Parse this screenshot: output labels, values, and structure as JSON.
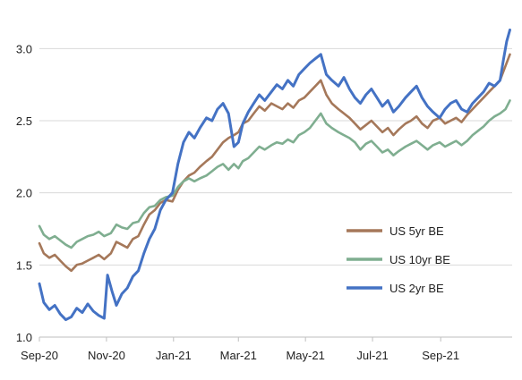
{
  "chart_data": {
    "type": "line",
    "title": "",
    "xlabel": "",
    "ylabel": "",
    "xlim": [
      "2020-09-01",
      "2021-11-05"
    ],
    "ylim": [
      1.0,
      3.25
    ],
    "y_ticks": [
      1.0,
      1.5,
      2.0,
      2.5,
      3.0
    ],
    "y_tick_labels": [
      "1.0",
      "1.5",
      "2.0",
      "2.5",
      "3.0"
    ],
    "x_ticks": [
      "2020-09-01",
      "2020-11-01",
      "2021-01-01",
      "2021-03-01",
      "2021-05-01",
      "2021-07-01",
      "2021-09-01"
    ],
    "x_tick_labels": [
      "Sep-20",
      "Nov-20",
      "Jan-21",
      "Mar-21",
      "May-21",
      "Jul-21",
      "Sep-21"
    ],
    "grid": "horizontal",
    "legend_position": "center-right",
    "series": [
      {
        "name": "US 5yr BE",
        "color": "#A5785A",
        "points": [
          [
            "2020-09-01",
            1.65
          ],
          [
            "2020-09-05",
            1.58
          ],
          [
            "2020-09-10",
            1.55
          ],
          [
            "2020-09-15",
            1.57
          ],
          [
            "2020-09-20",
            1.53
          ],
          [
            "2020-09-25",
            1.49
          ],
          [
            "2020-09-30",
            1.46
          ],
          [
            "2020-10-05",
            1.5
          ],
          [
            "2020-10-10",
            1.51
          ],
          [
            "2020-10-15",
            1.53
          ],
          [
            "2020-10-20",
            1.55
          ],
          [
            "2020-10-25",
            1.57
          ],
          [
            "2020-10-30",
            1.54
          ],
          [
            "2020-11-05",
            1.58
          ],
          [
            "2020-11-10",
            1.66
          ],
          [
            "2020-11-15",
            1.64
          ],
          [
            "2020-11-20",
            1.62
          ],
          [
            "2020-11-25",
            1.68
          ],
          [
            "2020-11-30",
            1.7
          ],
          [
            "2020-12-05",
            1.78
          ],
          [
            "2020-12-10",
            1.85
          ],
          [
            "2020-12-15",
            1.88
          ],
          [
            "2020-12-20",
            1.93
          ],
          [
            "2020-12-25",
            1.95
          ],
          [
            "2020-12-31",
            1.94
          ],
          [
            "2021-01-05",
            2.02
          ],
          [
            "2021-01-10",
            2.08
          ],
          [
            "2021-01-15",
            2.12
          ],
          [
            "2021-01-20",
            2.14
          ],
          [
            "2021-01-25",
            2.18
          ],
          [
            "2021-01-31",
            2.22
          ],
          [
            "2021-02-05",
            2.25
          ],
          [
            "2021-02-10",
            2.3
          ],
          [
            "2021-02-15",
            2.35
          ],
          [
            "2021-02-20",
            2.38
          ],
          [
            "2021-02-25",
            2.4
          ],
          [
            "2021-03-01",
            2.42
          ],
          [
            "2021-03-05",
            2.48
          ],
          [
            "2021-03-10",
            2.5
          ],
          [
            "2021-03-15",
            2.55
          ],
          [
            "2021-03-20",
            2.6
          ],
          [
            "2021-03-25",
            2.57
          ],
          [
            "2021-03-31",
            2.62
          ],
          [
            "2021-04-05",
            2.6
          ],
          [
            "2021-04-10",
            2.58
          ],
          [
            "2021-04-15",
            2.62
          ],
          [
            "2021-04-20",
            2.59
          ],
          [
            "2021-04-25",
            2.64
          ],
          [
            "2021-04-30",
            2.66
          ],
          [
            "2021-05-05",
            2.7
          ],
          [
            "2021-05-10",
            2.74
          ],
          [
            "2021-05-15",
            2.78
          ],
          [
            "2021-05-20",
            2.68
          ],
          [
            "2021-05-25",
            2.62
          ],
          [
            "2021-05-31",
            2.58
          ],
          [
            "2021-06-05",
            2.55
          ],
          [
            "2021-06-10",
            2.52
          ],
          [
            "2021-06-15",
            2.48
          ],
          [
            "2021-06-20",
            2.44
          ],
          [
            "2021-06-25",
            2.47
          ],
          [
            "2021-06-30",
            2.5
          ],
          [
            "2021-07-05",
            2.46
          ],
          [
            "2021-07-10",
            2.42
          ],
          [
            "2021-07-15",
            2.45
          ],
          [
            "2021-07-20",
            2.4
          ],
          [
            "2021-07-25",
            2.44
          ],
          [
            "2021-07-31",
            2.48
          ],
          [
            "2021-08-05",
            2.5
          ],
          [
            "2021-08-10",
            2.53
          ],
          [
            "2021-08-15",
            2.48
          ],
          [
            "2021-08-20",
            2.45
          ],
          [
            "2021-08-25",
            2.5
          ],
          [
            "2021-08-31",
            2.52
          ],
          [
            "2021-09-05",
            2.48
          ],
          [
            "2021-09-10",
            2.5
          ],
          [
            "2021-09-15",
            2.52
          ],
          [
            "2021-09-20",
            2.49
          ],
          [
            "2021-09-25",
            2.54
          ],
          [
            "2021-09-30",
            2.58
          ],
          [
            "2021-10-05",
            2.62
          ],
          [
            "2021-10-10",
            2.66
          ],
          [
            "2021-10-15",
            2.7
          ],
          [
            "2021-10-20",
            2.74
          ],
          [
            "2021-10-25",
            2.78
          ],
          [
            "2021-10-30",
            2.88
          ],
          [
            "2021-11-03",
            2.96
          ]
        ]
      },
      {
        "name": "US 10yr BE",
        "color": "#7FAE90",
        "points": [
          [
            "2020-09-01",
            1.77
          ],
          [
            "2020-09-05",
            1.71
          ],
          [
            "2020-09-10",
            1.68
          ],
          [
            "2020-09-15",
            1.7
          ],
          [
            "2020-09-20",
            1.67
          ],
          [
            "2020-09-25",
            1.64
          ],
          [
            "2020-09-30",
            1.62
          ],
          [
            "2020-10-05",
            1.66
          ],
          [
            "2020-10-10",
            1.68
          ],
          [
            "2020-10-15",
            1.7
          ],
          [
            "2020-10-20",
            1.71
          ],
          [
            "2020-10-25",
            1.73
          ],
          [
            "2020-10-30",
            1.7
          ],
          [
            "2020-11-05",
            1.72
          ],
          [
            "2020-11-10",
            1.78
          ],
          [
            "2020-11-15",
            1.76
          ],
          [
            "2020-11-20",
            1.75
          ],
          [
            "2020-11-25",
            1.79
          ],
          [
            "2020-11-30",
            1.8
          ],
          [
            "2020-12-05",
            1.86
          ],
          [
            "2020-12-10",
            1.9
          ],
          [
            "2020-12-15",
            1.91
          ],
          [
            "2020-12-20",
            1.95
          ],
          [
            "2020-12-25",
            1.97
          ],
          [
            "2020-12-31",
            1.98
          ],
          [
            "2021-01-05",
            2.04
          ],
          [
            "2021-01-10",
            2.08
          ],
          [
            "2021-01-15",
            2.1
          ],
          [
            "2021-01-20",
            2.08
          ],
          [
            "2021-01-25",
            2.1
          ],
          [
            "2021-01-31",
            2.12
          ],
          [
            "2021-02-05",
            2.15
          ],
          [
            "2021-02-10",
            2.18
          ],
          [
            "2021-02-15",
            2.2
          ],
          [
            "2021-02-20",
            2.16
          ],
          [
            "2021-02-25",
            2.2
          ],
          [
            "2021-03-01",
            2.17
          ],
          [
            "2021-03-05",
            2.22
          ],
          [
            "2021-03-10",
            2.24
          ],
          [
            "2021-03-15",
            2.28
          ],
          [
            "2021-03-20",
            2.32
          ],
          [
            "2021-03-25",
            2.3
          ],
          [
            "2021-03-31",
            2.33
          ],
          [
            "2021-04-05",
            2.35
          ],
          [
            "2021-04-10",
            2.34
          ],
          [
            "2021-04-15",
            2.37
          ],
          [
            "2021-04-20",
            2.35
          ],
          [
            "2021-04-25",
            2.4
          ],
          [
            "2021-04-30",
            2.42
          ],
          [
            "2021-05-05",
            2.45
          ],
          [
            "2021-05-10",
            2.5
          ],
          [
            "2021-05-15",
            2.55
          ],
          [
            "2021-05-20",
            2.48
          ],
          [
            "2021-05-25",
            2.45
          ],
          [
            "2021-05-31",
            2.42
          ],
          [
            "2021-06-05",
            2.4
          ],
          [
            "2021-06-10",
            2.38
          ],
          [
            "2021-06-15",
            2.35
          ],
          [
            "2021-06-20",
            2.3
          ],
          [
            "2021-06-25",
            2.34
          ],
          [
            "2021-06-30",
            2.36
          ],
          [
            "2021-07-05",
            2.32
          ],
          [
            "2021-07-10",
            2.28
          ],
          [
            "2021-07-15",
            2.3
          ],
          [
            "2021-07-20",
            2.26
          ],
          [
            "2021-07-25",
            2.29
          ],
          [
            "2021-07-31",
            2.32
          ],
          [
            "2021-08-05",
            2.34
          ],
          [
            "2021-08-10",
            2.36
          ],
          [
            "2021-08-15",
            2.33
          ],
          [
            "2021-08-20",
            2.3
          ],
          [
            "2021-08-25",
            2.33
          ],
          [
            "2021-08-31",
            2.35
          ],
          [
            "2021-09-05",
            2.32
          ],
          [
            "2021-09-10",
            2.34
          ],
          [
            "2021-09-15",
            2.36
          ],
          [
            "2021-09-20",
            2.33
          ],
          [
            "2021-09-25",
            2.36
          ],
          [
            "2021-09-30",
            2.4
          ],
          [
            "2021-10-05",
            2.43
          ],
          [
            "2021-10-10",
            2.46
          ],
          [
            "2021-10-15",
            2.5
          ],
          [
            "2021-10-20",
            2.53
          ],
          [
            "2021-10-25",
            2.55
          ],
          [
            "2021-10-30",
            2.58
          ],
          [
            "2021-11-03",
            2.64
          ]
        ]
      },
      {
        "name": "US 2yr BE",
        "color": "#4472C4",
        "points": [
          [
            "2020-09-01",
            1.37
          ],
          [
            "2020-09-05",
            1.24
          ],
          [
            "2020-09-10",
            1.19
          ],
          [
            "2020-09-15",
            1.22
          ],
          [
            "2020-09-20",
            1.16
          ],
          [
            "2020-09-25",
            1.12
          ],
          [
            "2020-09-30",
            1.14
          ],
          [
            "2020-10-05",
            1.2
          ],
          [
            "2020-10-10",
            1.17
          ],
          [
            "2020-10-15",
            1.23
          ],
          [
            "2020-10-20",
            1.18
          ],
          [
            "2020-10-25",
            1.15
          ],
          [
            "2020-10-30",
            1.13
          ],
          [
            "2020-11-02",
            1.43
          ],
          [
            "2020-11-06",
            1.32
          ],
          [
            "2020-11-10",
            1.22
          ],
          [
            "2020-11-15",
            1.3
          ],
          [
            "2020-11-20",
            1.34
          ],
          [
            "2020-11-25",
            1.42
          ],
          [
            "2020-11-30",
            1.46
          ],
          [
            "2020-12-05",
            1.58
          ],
          [
            "2020-12-10",
            1.68
          ],
          [
            "2020-12-15",
            1.75
          ],
          [
            "2020-12-20",
            1.88
          ],
          [
            "2020-12-25",
            1.95
          ],
          [
            "2020-12-31",
            2.0
          ],
          [
            "2021-01-05",
            2.2
          ],
          [
            "2021-01-10",
            2.35
          ],
          [
            "2021-01-15",
            2.42
          ],
          [
            "2021-01-20",
            2.38
          ],
          [
            "2021-01-25",
            2.45
          ],
          [
            "2021-01-31",
            2.52
          ],
          [
            "2021-02-05",
            2.5
          ],
          [
            "2021-02-10",
            2.58
          ],
          [
            "2021-02-15",
            2.62
          ],
          [
            "2021-02-20",
            2.55
          ],
          [
            "2021-02-25",
            2.32
          ],
          [
            "2021-03-01",
            2.35
          ],
          [
            "2021-03-05",
            2.48
          ],
          [
            "2021-03-10",
            2.56
          ],
          [
            "2021-03-15",
            2.62
          ],
          [
            "2021-03-20",
            2.68
          ],
          [
            "2021-03-25",
            2.64
          ],
          [
            "2021-03-31",
            2.7
          ],
          [
            "2021-04-05",
            2.75
          ],
          [
            "2021-04-10",
            2.72
          ],
          [
            "2021-04-15",
            2.78
          ],
          [
            "2021-04-20",
            2.74
          ],
          [
            "2021-04-25",
            2.82
          ],
          [
            "2021-04-30",
            2.86
          ],
          [
            "2021-05-05",
            2.9
          ],
          [
            "2021-05-10",
            2.93
          ],
          [
            "2021-05-15",
            2.96
          ],
          [
            "2021-05-20",
            2.82
          ],
          [
            "2021-05-25",
            2.78
          ],
          [
            "2021-05-31",
            2.74
          ],
          [
            "2021-06-05",
            2.8
          ],
          [
            "2021-06-10",
            2.72
          ],
          [
            "2021-06-15",
            2.66
          ],
          [
            "2021-06-20",
            2.62
          ],
          [
            "2021-06-25",
            2.68
          ],
          [
            "2021-06-30",
            2.72
          ],
          [
            "2021-07-05",
            2.66
          ],
          [
            "2021-07-10",
            2.6
          ],
          [
            "2021-07-15",
            2.64
          ],
          [
            "2021-07-20",
            2.56
          ],
          [
            "2021-07-25",
            2.6
          ],
          [
            "2021-07-31",
            2.66
          ],
          [
            "2021-08-05",
            2.7
          ],
          [
            "2021-08-10",
            2.74
          ],
          [
            "2021-08-15",
            2.66
          ],
          [
            "2021-08-20",
            2.6
          ],
          [
            "2021-08-25",
            2.56
          ],
          [
            "2021-08-31",
            2.52
          ],
          [
            "2021-09-05",
            2.58
          ],
          [
            "2021-09-10",
            2.62
          ],
          [
            "2021-09-15",
            2.64
          ],
          [
            "2021-09-20",
            2.58
          ],
          [
            "2021-09-25",
            2.56
          ],
          [
            "2021-09-30",
            2.62
          ],
          [
            "2021-10-05",
            2.66
          ],
          [
            "2021-10-10",
            2.7
          ],
          [
            "2021-10-15",
            2.76
          ],
          [
            "2021-10-20",
            2.74
          ],
          [
            "2021-10-25",
            2.78
          ],
          [
            "2021-10-28",
            2.92
          ],
          [
            "2021-10-31",
            3.05
          ],
          [
            "2021-11-03",
            3.13
          ]
        ]
      }
    ]
  }
}
